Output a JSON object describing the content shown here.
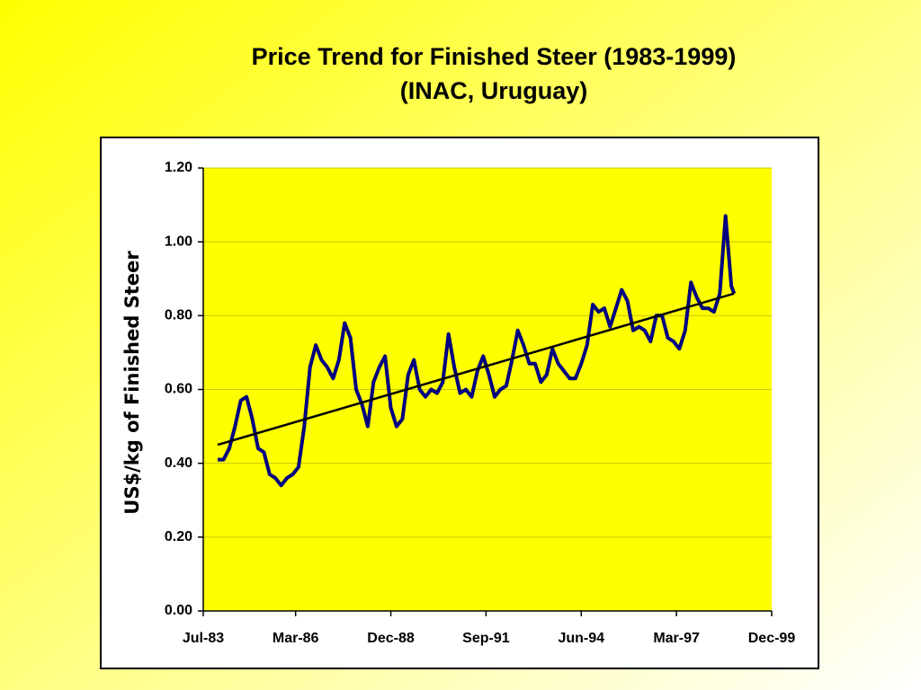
{
  "chart_data": {
    "type": "line",
    "title": "Price Trend for Finished Steer (1983-1999)",
    "subtitle": "(INAC, Uruguay)",
    "y_label": "US$/kg of Finished Steer",
    "xlim": [
      "1983-07",
      "1999-12"
    ],
    "xticks": [
      {
        "value": "1983-07",
        "label": "Jul-83"
      },
      {
        "value": "1986-03",
        "label": "Mar-86"
      },
      {
        "value": "1988-12",
        "label": "Dec-88"
      },
      {
        "value": "1991-09",
        "label": "Sep-91"
      },
      {
        "value": "1994-06",
        "label": "Jun-94"
      },
      {
        "value": "1997-03",
        "label": "Mar-97"
      },
      {
        "value": "1999-12",
        "label": "Dec-99"
      }
    ],
    "ylim": [
      0,
      1.2
    ],
    "yticks": [
      {
        "value": 0,
        "label": "0.00"
      },
      {
        "value": 0.2,
        "label": "0.20"
      },
      {
        "value": 0.4,
        "label": "0.40"
      },
      {
        "value": 0.6,
        "label": "0.60"
      },
      {
        "value": 0.8,
        "label": "0.80"
      },
      {
        "value": 1,
        "label": "1.00"
      },
      {
        "value": 1.2,
        "label": "1.20"
      }
    ],
    "grid": true,
    "series": [
      {
        "color": "#000080",
        "x": [
          "1983-12",
          "1984-02",
          "1984-04",
          "1984-06",
          "1984-08",
          "1984-10",
          "1984-12",
          "1985-02",
          "1985-04",
          "1985-06",
          "1985-08",
          "1985-10",
          "1985-12",
          "1986-02",
          "1986-04",
          "1986-06",
          "1986-08",
          "1986-10",
          "1986-12",
          "1987-02",
          "1987-04",
          "1987-06",
          "1987-08",
          "1987-10",
          "1987-12",
          "1988-02",
          "1988-04",
          "1988-06",
          "1988-08",
          "1988-10",
          "1988-12",
          "1989-02",
          "1989-04",
          "1989-06",
          "1989-08",
          "1989-10",
          "1989-12",
          "1990-02",
          "1990-04",
          "1990-06",
          "1990-08",
          "1990-10",
          "1990-12",
          "1991-02",
          "1991-04",
          "1991-06",
          "1991-08",
          "1991-10",
          "1991-12",
          "1992-02",
          "1992-04",
          "1992-06",
          "1992-08",
          "1992-10",
          "1992-12",
          "1993-02",
          "1993-04",
          "1993-06",
          "1993-08",
          "1993-10",
          "1993-12",
          "1994-02",
          "1994-04",
          "1994-06",
          "1994-08",
          "1994-10",
          "1994-12",
          "1995-02",
          "1995-04",
          "1995-06",
          "1995-08",
          "1995-10",
          "1995-12",
          "1996-02",
          "1996-04",
          "1996-06",
          "1996-08",
          "1996-10",
          "1996-12",
          "1997-02",
          "1997-04",
          "1997-06",
          "1997-08",
          "1997-10",
          "1997-12",
          "1998-02",
          "1998-04",
          "1998-06",
          "1998-08",
          "1998-10",
          "1998-11"
        ],
        "values": [
          0.41,
          0.41,
          0.44,
          0.5,
          0.57,
          0.58,
          0.52,
          0.44,
          0.43,
          0.37,
          0.36,
          0.34,
          0.36,
          0.37,
          0.39,
          0.5,
          0.66,
          0.72,
          0.68,
          0.66,
          0.63,
          0.68,
          0.78,
          0.74,
          0.6,
          0.56,
          0.5,
          0.62,
          0.66,
          0.69,
          0.55,
          0.5,
          0.52,
          0.64,
          0.68,
          0.6,
          0.58,
          0.6,
          0.59,
          0.62,
          0.75,
          0.66,
          0.59,
          0.6,
          0.58,
          0.65,
          0.69,
          0.64,
          0.58,
          0.6,
          0.61,
          0.68,
          0.76,
          0.72,
          0.67,
          0.67,
          0.62,
          0.64,
          0.71,
          0.67,
          0.65,
          0.63,
          0.63,
          0.67,
          0.72,
          0.83,
          0.81,
          0.82,
          0.77,
          0.82,
          0.87,
          0.84,
          0.76,
          0.77,
          0.76,
          0.73,
          0.8,
          0.8,
          0.74,
          0.73,
          0.71,
          0.76,
          0.89,
          0.85,
          0.82,
          0.82,
          0.81,
          0.86,
          1.07,
          0.88,
          0.86
        ]
      },
      {
        "color": "#000000",
        "x": [
          "1983-12",
          "1998-11"
        ],
        "values": [
          0.45,
          0.86
        ]
      }
    ]
  }
}
